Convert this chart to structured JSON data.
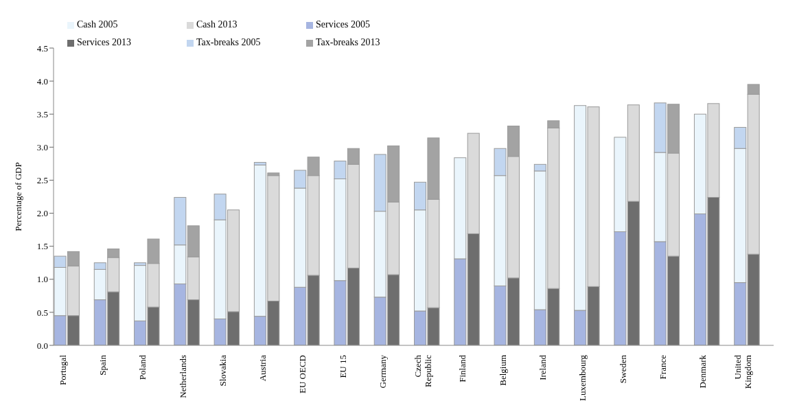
{
  "chart_data": {
    "type": "bar",
    "stacked": true,
    "ylabel": "Percentage of GDP",
    "categories": [
      "Portugal",
      null,
      null,
      "Spain",
      null,
      null,
      "Poland",
      null,
      null,
      "Netherlands",
      null,
      null,
      "Slovakia",
      null,
      null,
      "Austria",
      null,
      null,
      "EU  OECD",
      null,
      null,
      "EU 15",
      null,
      null,
      "Germany",
      null,
      null,
      "Czech Republic",
      null,
      null,
      "Finland",
      null,
      null,
      "Belgium",
      null,
      null,
      "Ireland",
      null,
      null,
      "Luxembourg",
      null,
      null,
      "Sweden",
      null,
      null,
      "France",
      null,
      null,
      "Denmark",
      null,
      null,
      "United Kingdom",
      null,
      null
    ],
    "series": [
      {
        "name": "Services 2005",
        "color": "#a6b5e1",
        "values": [
          0.45,
          null,
          null,
          0.69,
          null,
          null,
          0.37,
          null,
          null,
          0.93,
          null,
          null,
          0.4,
          null,
          null,
          0.44,
          null,
          null,
          0.88,
          null,
          null,
          0.98,
          null,
          null,
          0.73,
          null,
          null,
          0.52,
          null,
          null,
          1.31,
          null,
          null,
          0.9,
          null,
          null,
          0.54,
          null,
          null,
          0.53,
          null,
          null,
          1.72,
          null,
          null,
          1.57,
          null,
          null,
          1.99,
          null,
          null,
          0.95,
          null,
          null
        ]
      },
      {
        "name": "Cash 2005",
        "color": "#eaf5fc",
        "values": [
          0.73,
          null,
          null,
          0.46,
          null,
          null,
          0.84,
          null,
          null,
          0.59,
          null,
          null,
          1.5,
          null,
          null,
          2.29,
          null,
          null,
          1.5,
          null,
          null,
          1.54,
          null,
          null,
          1.3,
          null,
          null,
          1.53,
          null,
          null,
          1.53,
          null,
          null,
          1.67,
          null,
          null,
          2.1,
          null,
          null,
          3.1,
          null,
          null,
          1.43,
          null,
          null,
          1.35,
          null,
          null,
          1.51,
          null,
          null,
          2.03,
          null,
          null
        ]
      },
      {
        "name": "Tax-breaks 2005",
        "color": "#c2d6f0",
        "values": [
          0.17,
          null,
          null,
          0.1,
          null,
          null,
          0.04,
          null,
          null,
          0.72,
          null,
          null,
          0.39,
          null,
          null,
          0.04,
          null,
          null,
          0.27,
          null,
          null,
          0.27,
          null,
          null,
          0.86,
          null,
          null,
          0.42,
          null,
          null,
          null,
          null,
          null,
          0.41,
          null,
          null,
          0.1,
          null,
          null,
          null,
          null,
          null,
          null,
          null,
          null,
          0.75,
          null,
          null,
          null,
          null,
          null,
          0.32,
          null,
          null
        ]
      },
      {
        "name": "Services 2013",
        "color": "#6e6e6e",
        "values": [
          null,
          0.45,
          null,
          null,
          0.81,
          null,
          null,
          0.58,
          null,
          null,
          0.69,
          null,
          null,
          0.51,
          null,
          null,
          0.67,
          null,
          null,
          1.06,
          null,
          null,
          1.17,
          null,
          null,
          1.07,
          null,
          null,
          0.57,
          null,
          null,
          1.69,
          null,
          null,
          1.02,
          null,
          null,
          0.86,
          null,
          null,
          0.89,
          null,
          null,
          2.18,
          null,
          null,
          1.35,
          null,
          null,
          2.24,
          null,
          null,
          1.38,
          null
        ]
      },
      {
        "name": "Cash 2013",
        "color": "#dadada",
        "values": [
          null,
          0.75,
          null,
          null,
          0.52,
          null,
          null,
          0.66,
          null,
          null,
          0.65,
          null,
          null,
          1.54,
          null,
          null,
          1.9,
          null,
          null,
          1.51,
          null,
          null,
          1.57,
          null,
          null,
          1.1,
          null,
          null,
          1.64,
          null,
          null,
          1.52,
          null,
          null,
          1.84,
          null,
          null,
          2.43,
          null,
          null,
          2.72,
          null,
          null,
          1.46,
          null,
          null,
          1.56,
          null,
          null,
          1.42,
          null,
          null,
          2.42,
          null
        ]
      },
      {
        "name": "Tax-breaks 2013",
        "color": "#a3a3a3",
        "values": [
          null,
          0.22,
          null,
          null,
          0.13,
          null,
          null,
          0.37,
          null,
          null,
          0.47,
          null,
          null,
          null,
          null,
          null,
          0.04,
          null,
          null,
          0.28,
          null,
          null,
          0.24,
          null,
          null,
          0.85,
          null,
          null,
          0.93,
          null,
          null,
          null,
          null,
          null,
          0.46,
          null,
          null,
          0.11,
          null,
          null,
          null,
          null,
          null,
          null,
          null,
          null,
          0.74,
          null,
          null,
          null,
          null,
          null,
          0.15,
          null
        ]
      }
    ],
    "ylim": [
      0,
      4.5
    ],
    "yticks": [
      {
        "value": 0,
        "label": "0.0"
      },
      {
        "value": 0.5,
        "label": "0.5"
      },
      {
        "value": 1,
        "label": "1.0"
      },
      {
        "value": 1.5,
        "label": "1.5"
      },
      {
        "value": 2,
        "label": "2.0"
      },
      {
        "value": 2.5,
        "label": "2.5"
      },
      {
        "value": 3,
        "label": "3.0"
      },
      {
        "value": 3.5,
        "label": "3.5"
      },
      {
        "value": 4,
        "label": "4.0"
      },
      {
        "value": 4.5,
        "label": "4.5"
      }
    ],
    "legend": "top left"
  }
}
